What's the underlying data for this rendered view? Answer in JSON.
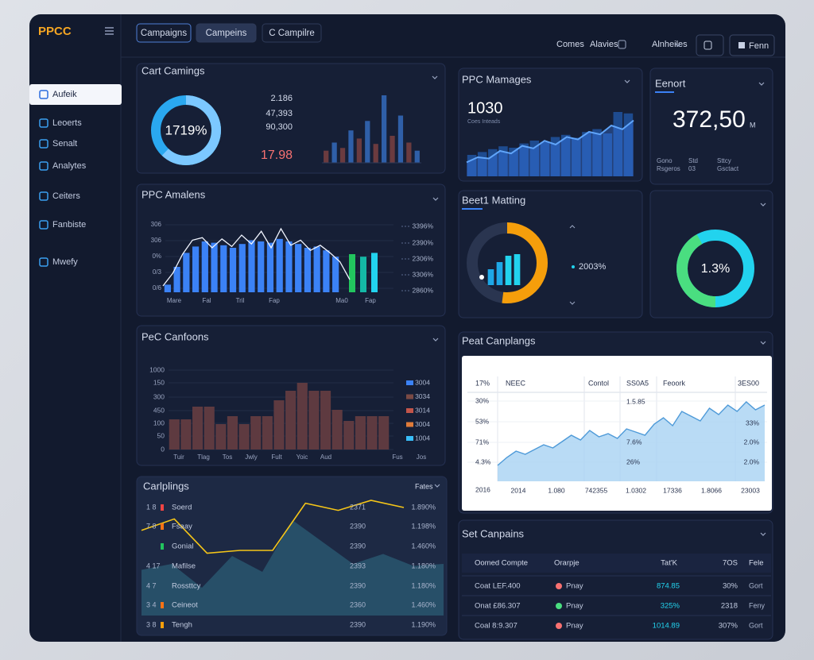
{
  "brand": "PPCC",
  "tabs": [
    "Campaigns",
    "Campeins",
    "C Campilre"
  ],
  "top_links": [
    "Comes",
    "Alavies",
    "Alnheiles"
  ],
  "top_button": "Fenn",
  "sidebar": [
    "Aufeik",
    "Leoerts",
    "Senalt",
    "Analytes",
    "Ceiters",
    "Fanbiste",
    "Mwefy"
  ],
  "cart": {
    "title": "Cart Camings",
    "donut_label": "1719%",
    "donut_share": 62,
    "stats": [
      "2.186",
      "47,393",
      "90,300"
    ],
    "highlight": "17.98",
    "bars": [
      18,
      30,
      22,
      48,
      36,
      62,
      28,
      100,
      40,
      70,
      30,
      18
    ],
    "bar_colors": [
      "#6b3b3f",
      "#2f5fa8"
    ]
  },
  "managers": {
    "title": "PPC Mamages",
    "value": "1030",
    "caption": "Coes Inteads",
    "bars": [
      30,
      34,
      38,
      42,
      40,
      46,
      50,
      48,
      55,
      58,
      54,
      62,
      66,
      60,
      90,
      88
    ],
    "line": [
      22,
      30,
      28,
      40,
      36,
      48,
      44,
      56,
      50,
      62,
      58,
      70,
      66,
      80,
      74,
      88
    ],
    "color": "#1e4b8f"
  },
  "report": {
    "title": "Eenort",
    "value": "372,50",
    "unit": "M",
    "notes": [
      [
        "Gono",
        "Rsgeros"
      ],
      [
        "Std",
        "03"
      ],
      [
        "Sttcy",
        "Gsctact"
      ]
    ]
  },
  "analytics": {
    "title": "PPC Amalens",
    "y_labels": [
      "306",
      "306",
      "0%",
      "0/3",
      "0/6"
    ],
    "right_labels": [
      "3396%",
      "2390%",
      "2306%",
      "3306%",
      "2860%"
    ],
    "x_labels": [
      "Mare",
      "Fal",
      "Tril",
      "Fap",
      "Ma0",
      "Fap"
    ],
    "bars": [
      12,
      40,
      62,
      72,
      80,
      78,
      74,
      70,
      76,
      82,
      80,
      78,
      84,
      80,
      76,
      70,
      72,
      66,
      56
    ],
    "color": "#3b82f6",
    "accent_bars": [
      60,
      56,
      62
    ],
    "accent_colors": [
      "#22c55e",
      "#14b8a6",
      "#22d3ee"
    ],
    "line": [
      10,
      30,
      60,
      82,
      86,
      70,
      84,
      72,
      90,
      76,
      96,
      70,
      100,
      74,
      82,
      66,
      74,
      62,
      48,
      20
    ]
  },
  "matting": {
    "title": "Beet1 Matting",
    "share": 52,
    "bars": [
      40,
      58,
      74,
      78
    ],
    "label": "2003%",
    "color": "#f59e0b"
  },
  "ring": {
    "label": "1.3%",
    "share": 42,
    "colors": [
      "#4ade80",
      "#22d3ee"
    ]
  },
  "confoons": {
    "title": "PeC Canfoons",
    "y_labels": [
      "1000",
      "150",
      "300",
      "450",
      "100",
      "50",
      "0"
    ],
    "x_labels": [
      "Tuir",
      "Tlag",
      "Tos",
      "Jwly",
      "Fult",
      "Yoic",
      "Aud",
      "Fus",
      "Jos"
    ],
    "bars": [
      38,
      38,
      54,
      54,
      32,
      42,
      32,
      42,
      42,
      62,
      74,
      84,
      74,
      74,
      50,
      36,
      42,
      42,
      42
    ],
    "color": "#5e3a40",
    "legend": [
      {
        "label": "3004",
        "color": "#3b82f6"
      },
      {
        "label": "3034",
        "color": "#7a4a45"
      },
      {
        "label": "3014",
        "color": "#c2554a"
      },
      {
        "label": "3004",
        "color": "#e07b39"
      },
      {
        "label": "1004",
        "color": "#38bdf8"
      }
    ]
  },
  "peat": {
    "title": "Peat Canplangs",
    "header": [
      "17%",
      "NEEC",
      "Contol",
      "SS0A5",
      "Feoork",
      "3ES00"
    ],
    "y_labels": [
      "30%",
      "53%",
      "71%",
      "4.3%",
      "2016"
    ],
    "x_labels": [
      "2014",
      "1.080",
      "742355",
      "1.0302",
      "17336",
      "1.8066",
      "23003"
    ],
    "inner_labels": [
      "1.5.85",
      "7.6%",
      "26%"
    ],
    "right_labels": [
      "33%",
      "2.0%",
      "2.0%"
    ],
    "area": [
      20,
      30,
      38,
      34,
      40,
      46,
      42,
      50,
      58,
      52,
      64,
      56,
      60,
      54,
      66,
      62,
      58,
      72,
      80,
      70,
      88,
      82,
      76,
      92,
      84,
      96,
      88,
      100,
      90,
      96
    ]
  },
  "campaign_list": {
    "title": "Carlplings",
    "filter": "Fates",
    "rows": [
      {
        "index": "1 8",
        "name": "Soerd",
        "value": "2371",
        "share": "1.890%",
        "color": "#ef4444"
      },
      {
        "index": "7 8",
        "name": "Fsaay",
        "value": "2390",
        "share": "1.198%",
        "color": "#f97316"
      },
      {
        "index": "",
        "name": "Gonial",
        "value": "2390",
        "share": "1.460%",
        "color": "#22c55e"
      },
      {
        "index": "4 17",
        "name": "Mafilse",
        "value": "2393",
        "share": "1.180%",
        "color": null
      },
      {
        "index": "4 7",
        "name": "Rossttcy",
        "value": "2390",
        "share": "1.180%",
        "color": null
      },
      {
        "index": "3 4",
        "name": "Ceineot",
        "value": "2360",
        "share": "1.460%",
        "color": "#f97316"
      },
      {
        "index": "3 8",
        "name": "Tengh",
        "value": "2390",
        "share": "1.190%",
        "color": "#f59e0b"
      }
    ],
    "area": [
      46,
      52,
      28,
      60,
      44,
      96,
      74,
      52,
      62,
      50,
      52
    ],
    "line": [
      58,
      74,
      26,
      30,
      30,
      96,
      86,
      100,
      90
    ]
  },
  "set_campaigns": {
    "title": "Set Canpains",
    "header": [
      "Oomed Compte",
      "Orarpje",
      "Tat'K",
      "7OS",
      "Fele"
    ],
    "rows": [
      {
        "name": "Coat LEF.400",
        "dot": "#f87171",
        "status": "Pnay",
        "value": "874.85",
        "pct": "30%",
        "extra": "Gort"
      },
      {
        "name": "Onat £86.307",
        "dot": "#4ade80",
        "status": "Pnay",
        "value": "325%",
        "pct": "2318",
        "extra": "Feny"
      },
      {
        "name": "Coal 8:9.307",
        "dot": "#f87171",
        "status": "Pnay",
        "value": "1014.89",
        "pct": "307%",
        "extra": "Gort"
      }
    ]
  }
}
